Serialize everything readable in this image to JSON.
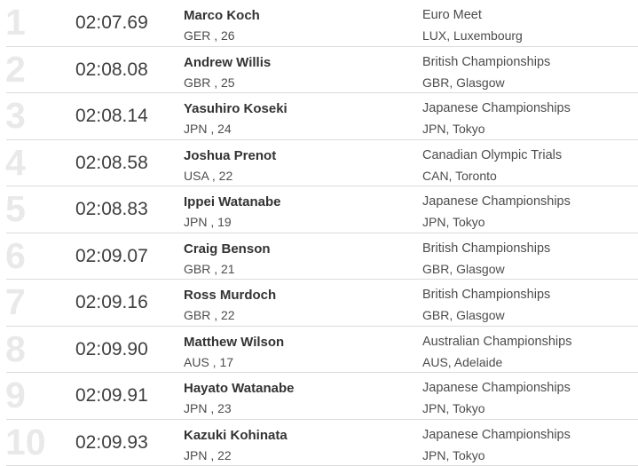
{
  "table": {
    "description": "swimming-rankings-list",
    "colors": {
      "rank_number": "#eae9e9",
      "time_text": "#3e3e3e",
      "name_text": "#333333",
      "secondary_text": "#4c4c4c",
      "divider": "#dbdbdb",
      "background": "#ffffff"
    },
    "rows": [
      {
        "rank": "1",
        "time": "02:07.69",
        "name": "Marco Koch",
        "nation_age": "GER , 26",
        "meet": "Euro Meet",
        "location": "LUX, Luxembourg"
      },
      {
        "rank": "2",
        "time": "02:08.08",
        "name": "Andrew Willis",
        "nation_age": "GBR , 25",
        "meet": "British Championships",
        "location": "GBR, Glasgow"
      },
      {
        "rank": "3",
        "time": "02:08.14",
        "name": "Yasuhiro Koseki",
        "nation_age": "JPN , 24",
        "meet": "Japanese Championships",
        "location": "JPN, Tokyo"
      },
      {
        "rank": "4",
        "time": "02:08.58",
        "name": "Joshua Prenot",
        "nation_age": "USA , 22",
        "meet": "Canadian Olympic Trials",
        "location": "CAN, Toronto"
      },
      {
        "rank": "5",
        "time": "02:08.83",
        "name": "Ippei Watanabe",
        "nation_age": "JPN , 19",
        "meet": "Japanese Championships",
        "location": "JPN, Tokyo"
      },
      {
        "rank": "6",
        "time": "02:09.07",
        "name": "Craig Benson",
        "nation_age": "GBR , 21",
        "meet": "British Championships",
        "location": "GBR, Glasgow"
      },
      {
        "rank": "7",
        "time": "02:09.16",
        "name": "Ross Murdoch",
        "nation_age": "GBR , 22",
        "meet": "British Championships",
        "location": "GBR, Glasgow"
      },
      {
        "rank": "8",
        "time": "02:09.90",
        "name": "Matthew Wilson",
        "nation_age": "AUS , 17",
        "meet": "Australian Championships",
        "location": "AUS, Adelaide"
      },
      {
        "rank": "9",
        "time": "02:09.91",
        "name": "Hayato Watanabe",
        "nation_age": "JPN , 23",
        "meet": "Japanese Championships",
        "location": "JPN, Tokyo"
      },
      {
        "rank": "10",
        "time": "02:09.93",
        "name": "Kazuki Kohinata",
        "nation_age": "JPN , 22",
        "meet": "Japanese Championships",
        "location": "JPN, Tokyo"
      }
    ]
  }
}
